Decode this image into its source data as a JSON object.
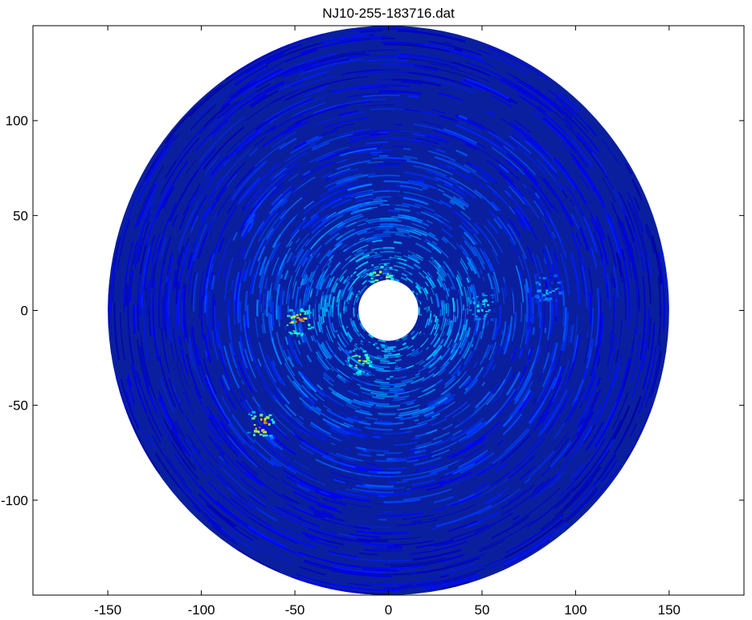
{
  "chart_data": {
    "type": "heatmap",
    "projection": "polar",
    "title": "NJ10-255-183716.dat",
    "xlabel": "",
    "ylabel": "",
    "xlim": [
      -190,
      190
    ],
    "ylim": [
      -150,
      150
    ],
    "x_ticks": [
      -150,
      -100,
      -50,
      0,
      50,
      100,
      150
    ],
    "y_ticks": [
      -100,
      -50,
      0,
      50,
      100
    ],
    "r_inner": 16,
    "r_outer": 150,
    "colormap": "jet",
    "background_color": "#0a1f9e",
    "hotspots": [
      {
        "x": -68,
        "y": -60,
        "intensity": 0.75
      },
      {
        "x": -48,
        "y": -6,
        "intensity": 0.7
      },
      {
        "x": -4,
        "y": 18,
        "intensity": 0.55
      },
      {
        "x": -15,
        "y": -27,
        "intensity": 0.5
      },
      {
        "x": 50,
        "y": 2,
        "intensity": 0.3
      },
      {
        "x": 85,
        "y": 12,
        "intensity": 0.25
      }
    ],
    "grid": false
  }
}
